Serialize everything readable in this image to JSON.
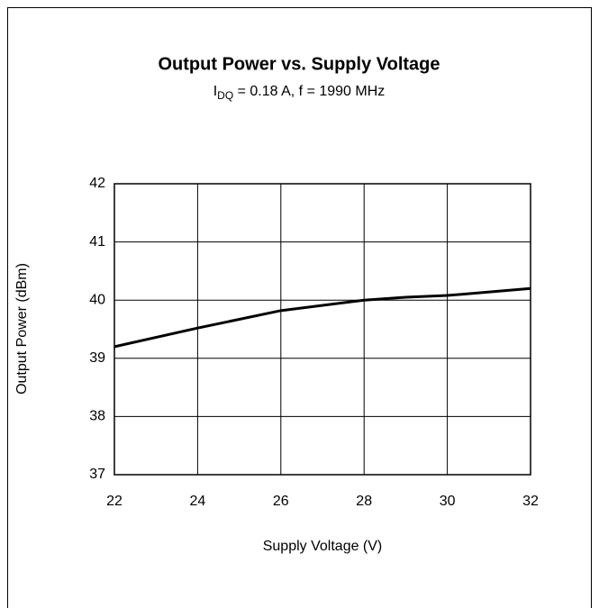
{
  "chart_data": {
    "type": "line",
    "title": "Output Power vs. Supply Voltage",
    "subtitle": {
      "symbol": "I",
      "subscript": "DQ",
      "text": " = 0.18 A,  f = 1990 MHz"
    },
    "x_label": "Supply Voltage (V)",
    "y_label": "Output Power (dBm)",
    "x": [
      22,
      24,
      26,
      28,
      29,
      30,
      32
    ],
    "series": [
      {
        "name": "Output Power",
        "color": "#000000",
        "values": [
          39.2,
          39.52,
          39.82,
          40.0,
          40.05,
          40.08,
          40.2
        ]
      }
    ],
    "xlim": [
      22,
      32
    ],
    "xticks": [
      22,
      24,
      26,
      28,
      30,
      32
    ],
    "ylim": [
      37,
      42
    ],
    "yticks": [
      37,
      38,
      39,
      40,
      41,
      42
    ],
    "grid": true
  }
}
